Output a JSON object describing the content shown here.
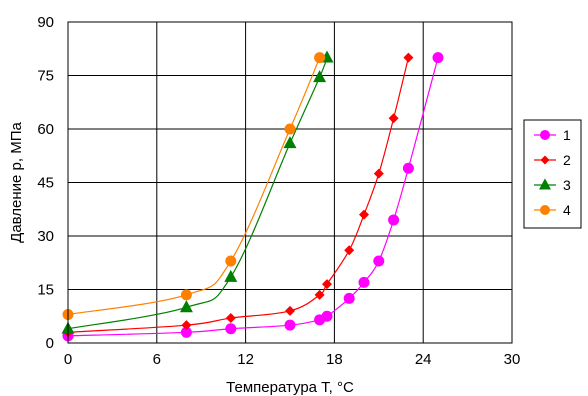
{
  "chart_data": {
    "type": "scatter",
    "xlabel": "Температура Т, °С",
    "ylabel": "Давление p, МПа",
    "xlim": [
      0,
      30
    ],
    "ylim": [
      0,
      90
    ],
    "x_ticks": [
      "0",
      "6",
      "12",
      "18",
      "24",
      "30"
    ],
    "y_ticks": [
      "0",
      "15",
      "30",
      "45",
      "60",
      "75",
      "90"
    ],
    "grid": true,
    "legend_position": "right",
    "series": [
      {
        "name": "1",
        "color": "#ff00ff",
        "marker": "circle",
        "x": [
          0,
          8,
          11,
          15,
          17,
          17.5,
          19,
          20,
          21,
          22,
          23,
          25
        ],
        "y": [
          2,
          3,
          4,
          5,
          6.5,
          7.5,
          12.5,
          17,
          23,
          34.5,
          49,
          80
        ]
      },
      {
        "name": "2",
        "color": "#ff0000",
        "marker": "diamond",
        "x": [
          0,
          8,
          11,
          15,
          17,
          17.5,
          19,
          20,
          21,
          22,
          23
        ],
        "y": [
          3,
          5,
          7,
          9,
          13.5,
          16.5,
          26,
          36,
          47.5,
          63,
          80
        ]
      },
      {
        "name": "3",
        "color": "#008000",
        "marker": "triangle",
        "x": [
          0,
          8,
          11,
          15,
          17,
          17.5
        ],
        "y": [
          4,
          10,
          18.5,
          56,
          74.5,
          80
        ]
      },
      {
        "name": "4",
        "color": "#ff8000",
        "marker": "circle",
        "x": [
          0,
          8,
          11,
          15,
          17
        ],
        "y": [
          8,
          13.5,
          23,
          60,
          80
        ]
      }
    ]
  }
}
